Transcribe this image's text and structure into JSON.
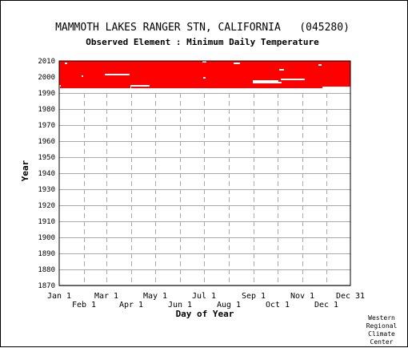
{
  "chart_data": {
    "type": "heatmap",
    "title": "MAMMOTH LAKES RANGER STN, CALIFORNIA   (045280)",
    "subtitle": "Observed Element : Minimum Daily Temperature",
    "xlabel": "Day of Year",
    "ylabel": "Year",
    "ylim": [
      1870,
      2010
    ],
    "yticks": [
      1870,
      1880,
      1890,
      1900,
      1910,
      1920,
      1930,
      1940,
      1950,
      1960,
      1970,
      1980,
      1990,
      2000,
      2010
    ],
    "xlim": [
      1,
      365
    ],
    "xticks_top": [
      {
        "label": "Jan 1",
        "day": 1
      },
      {
        "label": "Mar 1",
        "day": 60
      },
      {
        "label": "May 1",
        "day": 121
      },
      {
        "label": "Jul 1",
        "day": 182
      },
      {
        "label": "Sep 1",
        "day": 244
      },
      {
        "label": "Nov 1",
        "day": 305
      },
      {
        "label": "Dec 31",
        "day": 365
      }
    ],
    "xticks_bottom": [
      {
        "label": "Feb 1",
        "day": 32
      },
      {
        "label": "Apr 1",
        "day": 91
      },
      {
        "label": "Jun 1",
        "day": 152
      },
      {
        "label": "Aug 1",
        "day": 213
      },
      {
        "label": "Oct 1",
        "day": 274
      },
      {
        "label": "Dec 1",
        "day": 335
      }
    ],
    "grid": true,
    "data_color": "#ff0000",
    "record_start_year": 1992,
    "record_end_year": 2010,
    "missing_segments": [
      {
        "year": 2008,
        "day_start": 8,
        "day_end": 10
      },
      {
        "year": 2009,
        "day_start": 180,
        "day_end": 184
      },
      {
        "year": 2008,
        "day_start": 219,
        "day_end": 226
      },
      {
        "year": 2007,
        "day_start": 325,
        "day_end": 328
      },
      {
        "year": 2004,
        "day_start": 276,
        "day_end": 281
      },
      {
        "year": 2001,
        "day_start": 58,
        "day_end": 88
      },
      {
        "year": 2000,
        "day_start": 29,
        "day_end": 30
      },
      {
        "year": 1999,
        "day_start": 181,
        "day_end": 183
      },
      {
        "year": 1998,
        "day_start": 278,
        "day_end": 307
      },
      {
        "year": 1997,
        "day_start": 243,
        "day_end": 274
      },
      {
        "year": 1996,
        "day_start": 243,
        "day_end": 278
      },
      {
        "year": 1994,
        "day_start": 1,
        "day_end": 2
      },
      {
        "year": 1994,
        "day_start": 90,
        "day_end": 113
      },
      {
        "year": 1993,
        "day_start": 90,
        "day_end": 90
      },
      {
        "year": 1992,
        "day_start": 1,
        "day_end": 365
      },
      {
        "year": 1993,
        "day_start": 1,
        "day_end": 1
      },
      {
        "year": 1993,
        "day_start": 330,
        "day_end": 365
      }
    ]
  },
  "credit": [
    "Western",
    "Regional",
    "Climate",
    "Center"
  ]
}
